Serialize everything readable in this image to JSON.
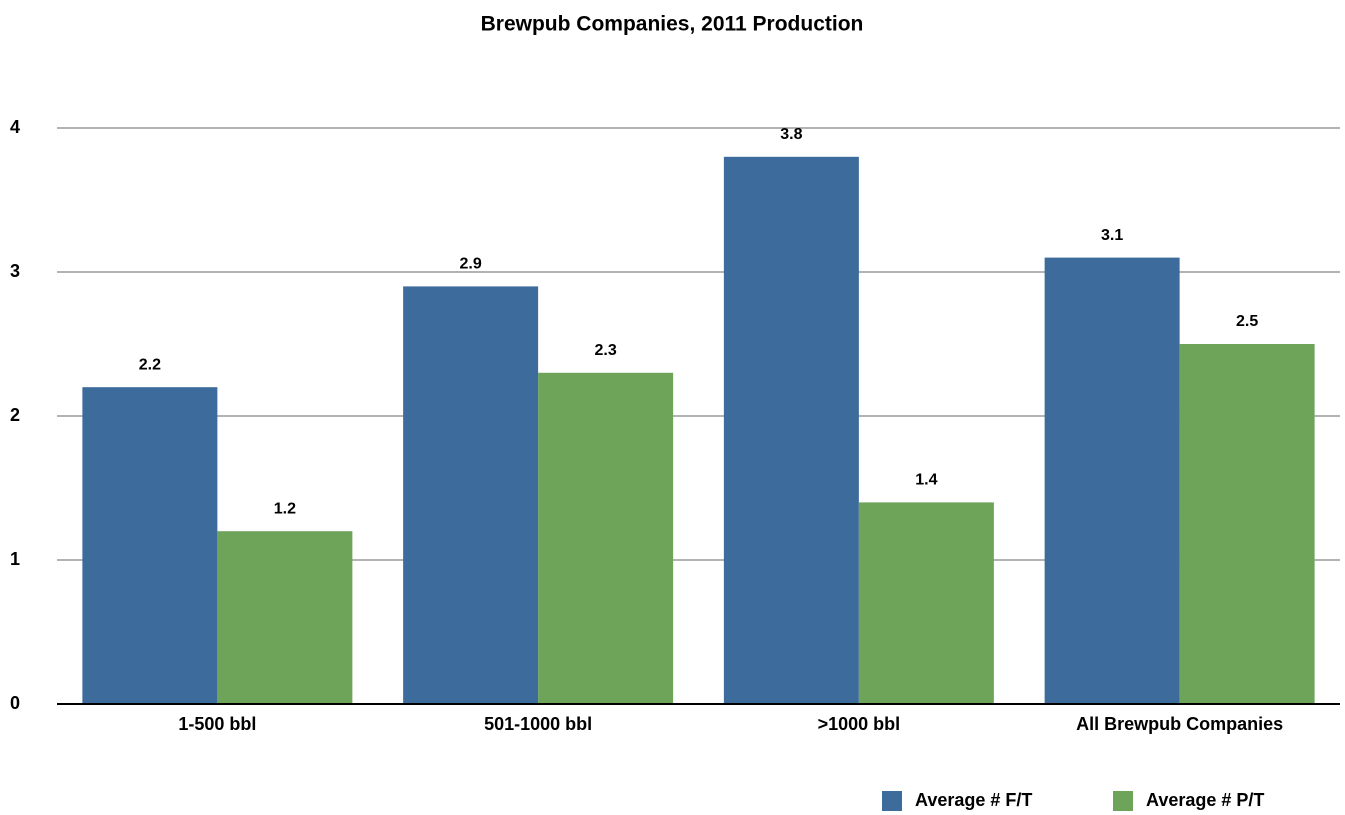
{
  "chart_data": {
    "type": "bar",
    "title": "Brewpub Companies, 2011 Production",
    "categories": [
      "1-500 bbl",
      "501-1000 bbl",
      ">1000 bbl",
      "All Brewpub Companies"
    ],
    "series": [
      {
        "name": "Average # F/T",
        "color": "#3d6b9c",
        "values": [
          2.2,
          2.9,
          3.8,
          3.1
        ]
      },
      {
        "name": "Average # P/T",
        "color": "#6ea35a",
        "values": [
          1.2,
          2.3,
          1.4,
          2.5
        ]
      }
    ],
    "ylim": [
      0,
      4
    ],
    "yticks": [
      0,
      1,
      2,
      3,
      4
    ],
    "grid": true,
    "legend": "bottom-right"
  }
}
